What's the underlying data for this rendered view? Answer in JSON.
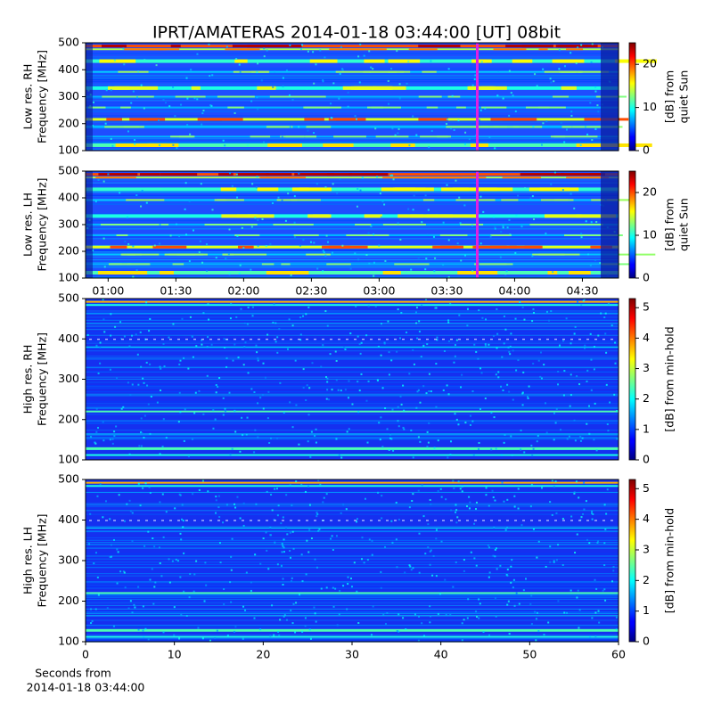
{
  "title": "IPRT/AMATERAS 2014-01-18 03:44:00 [UT]   08bit",
  "chart_data": [
    {
      "type": "spectrogram",
      "ylabel": [
        "Low res. RH",
        "Frequency [MHz]"
      ],
      "xlim": [
        50,
        286
      ],
      "ylim": [
        100,
        500
      ],
      "yticks": [
        100,
        200,
        300,
        400,
        500
      ],
      "colormap": "jet",
      "clim": [
        0,
        25
      ],
      "cticks": [
        0,
        10,
        20
      ],
      "colorbar_label": [
        "[dB] from",
        "quiet Sun"
      ]
    },
    {
      "type": "spectrogram",
      "ylabel": [
        "Low res. LH",
        "Frequency [MHz]"
      ],
      "xlim": [
        50,
        286
      ],
      "ylim": [
        100,
        500
      ],
      "yticks": [
        100,
        200,
        300,
        400,
        500
      ],
      "xticks": [
        {
          "value": 60,
          "label": "01:00"
        },
        {
          "value": 90,
          "label": "01:30"
        },
        {
          "value": 120,
          "label": "02:00"
        },
        {
          "value": 150,
          "label": "02:30"
        },
        {
          "value": 180,
          "label": "03:00"
        },
        {
          "value": 210,
          "label": "03:30"
        },
        {
          "value": 240,
          "label": "04:00"
        },
        {
          "value": 270,
          "label": "04:30"
        }
      ],
      "colormap": "jet",
      "clim": [
        0,
        25
      ],
      "cticks": [
        0,
        10,
        20
      ],
      "colorbar_label": [
        "[dB] from",
        "quiet Sun"
      ]
    },
    {
      "type": "spectrogram",
      "ylabel": [
        "High res. RH",
        "Frequency [MHz]"
      ],
      "xlim": [
        0,
        60
      ],
      "ylim": [
        100,
        500
      ],
      "yticks": [
        100,
        200,
        300,
        400,
        500
      ],
      "colormap": "jet",
      "clim": [
        0,
        5.3
      ],
      "cticks": [
        0,
        1,
        2,
        3,
        4,
        5
      ],
      "colorbar_label": [
        "[dB] from min-hold"
      ]
    },
    {
      "type": "spectrogram",
      "ylabel": [
        "High res. LH",
        "Frequency [MHz]"
      ],
      "xlim": [
        0,
        60
      ],
      "ylim": [
        100,
        500
      ],
      "yticks": [
        100,
        200,
        300,
        400,
        500
      ],
      "xticks": [
        0,
        10,
        20,
        30,
        40,
        50,
        60
      ],
      "xlabel": [
        "Seconds from",
        "2014-01-18 03:44:00"
      ],
      "colormap": "jet",
      "clim": [
        0,
        5.3
      ],
      "cticks": [
        0,
        1,
        2,
        3,
        4,
        5
      ],
      "colorbar_label": [
        "[dB] from min-hold"
      ]
    }
  ]
}
